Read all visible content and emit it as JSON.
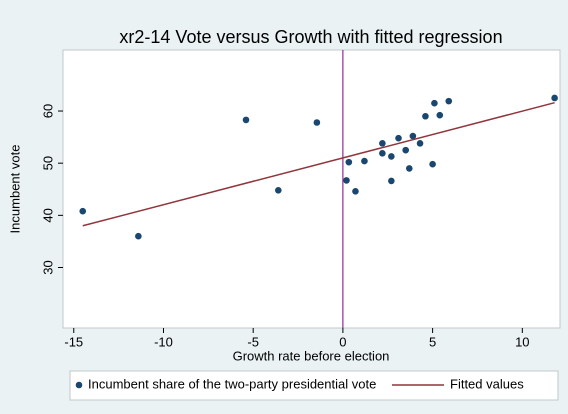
{
  "chart_data": {
    "type": "scatter",
    "title": "xr2-14 Vote versus Growth with fitted regression",
    "x_label": "Growth rate before election",
    "y_label": "Incumbent vote",
    "xlim": [
      -15.6,
      12.1
    ],
    "ylim": [
      18.4,
      71.7
    ],
    "xticks": [
      -15,
      -10,
      -5,
      0,
      5,
      10
    ],
    "yticks": [
      30,
      40,
      50,
      60
    ],
    "xline": 0,
    "xline_color": "#800080",
    "series": [
      {
        "name": "Incumbent share of the two-party presidential vote",
        "type": "scatter",
        "color": "#1a476f",
        "x": [
          -14.5,
          -11.4,
          -5.4,
          -3.6,
          -1.45,
          0.33,
          0.2,
          0.7,
          1.2,
          2.2,
          2.2,
          2.7,
          2.7,
          3.1,
          3.5,
          3.7,
          3.9,
          4.3,
          4.6,
          5.0,
          5.1,
          5.4,
          5.9,
          11.8
        ],
        "values": [
          40.8,
          36.0,
          58.3,
          44.8,
          57.8,
          50.2,
          46.7,
          44.6,
          50.4,
          53.8,
          51.9,
          51.3,
          46.6,
          54.8,
          52.5,
          49.0,
          55.2,
          53.8,
          59.0,
          49.8,
          61.5,
          59.2,
          61.9,
          62.5
        ]
      },
      {
        "name": "Fitted values",
        "type": "line",
        "color": "#90353b",
        "x": [
          -14.5,
          11.8
        ],
        "values": [
          38.0,
          61.6
        ]
      }
    ]
  }
}
